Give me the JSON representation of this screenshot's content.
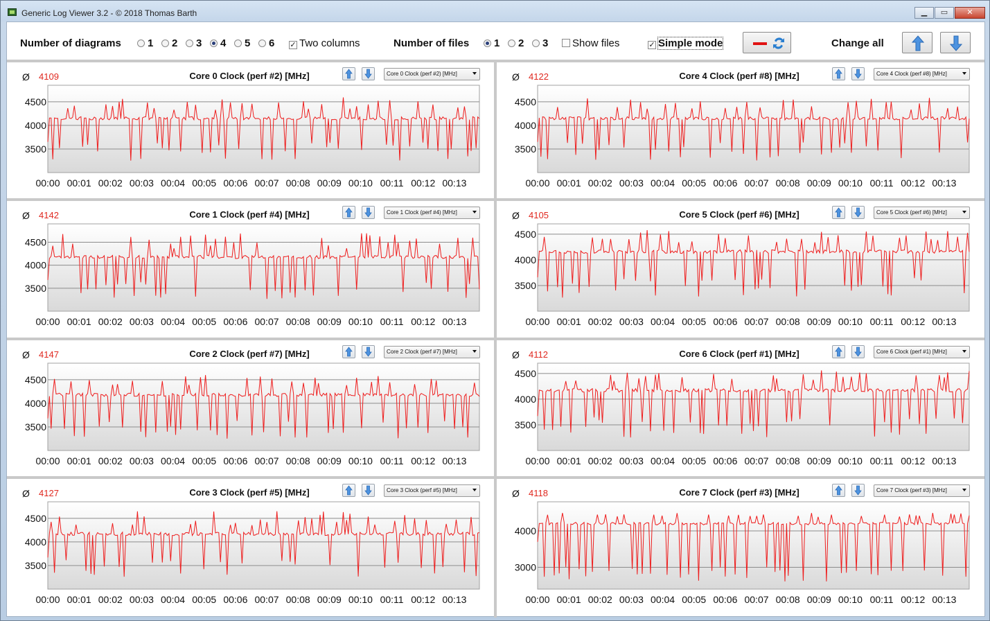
{
  "window": {
    "title": "Generic Log Viewer 3.2 - © 2018 Thomas Barth",
    "minimize": "▁",
    "maximize": "▭",
    "close": "✕"
  },
  "toolbar": {
    "num_diagrams_label": "Number of diagrams",
    "diagram_options": [
      "1",
      "2",
      "3",
      "4",
      "5",
      "6"
    ],
    "diagram_selected": "4",
    "two_columns_label": "Two columns",
    "two_columns_checked": true,
    "num_files_label": "Number of files",
    "file_options": [
      "1",
      "2",
      "3"
    ],
    "file_selected": "1",
    "show_files_label": "Show files",
    "show_files_checked": false,
    "simple_mode_label": "Simple mode",
    "simple_mode_checked": true,
    "change_all_label": "Change all"
  },
  "colors": {
    "series": "#ee1c1c",
    "avg": "#e0281f"
  },
  "panels": [
    {
      "title": "Core 0 Clock (perf #2) [MHz]",
      "avg": "4109",
      "combo": "Core 0 Clock (perf #2) [MHz]"
    },
    {
      "title": "Core 4 Clock (perf #8) [MHz]",
      "avg": "4122",
      "combo": "Core 4 Clock (perf #8) [MHz]"
    },
    {
      "title": "Core 1 Clock (perf #4) [MHz]",
      "avg": "4142",
      "combo": "Core 1 Clock (perf #4) [MHz]"
    },
    {
      "title": "Core 5 Clock (perf #6) [MHz]",
      "avg": "4105",
      "combo": "Core 5 Clock (perf #6) [MHz]"
    },
    {
      "title": "Core 2 Clock (perf #7) [MHz]",
      "avg": "4147",
      "combo": "Core 2 Clock (perf #7) [MHz]"
    },
    {
      "title": "Core 6 Clock (perf #1) [MHz]",
      "avg": "4112",
      "combo": "Core 6 Clock (perf #1) [MHz]"
    },
    {
      "title": "Core 3 Clock (perf #5) [MHz]",
      "avg": "4127",
      "combo": "Core 3 Clock (perf #5) [MHz]"
    },
    {
      "title": "Core 7 Clock (perf #3) [MHz]",
      "avg": "4118",
      "combo": "Core 7 Clock (perf #3) [MHz]"
    }
  ],
  "chart_data": [
    {
      "type": "line",
      "title": "Core 0 Clock (perf #2) [MHz]",
      "ylim": [
        3000,
        4850
      ],
      "yticks": [
        "3500",
        "4000",
        "4500"
      ],
      "xticks": [
        "00:00",
        "00:01",
        "00:02",
        "00:03",
        "00:04",
        "00:05",
        "00:06",
        "00:07",
        "00:08",
        "00:09",
        "00:10",
        "00:11",
        "00:12",
        "00:13"
      ],
      "xlim_minutes": [
        0,
        13.8
      ],
      "baseline": 4150,
      "seed": 11,
      "spike_up_max": 4600,
      "dip_min": 3250
    },
    {
      "type": "line",
      "title": "Core 4 Clock (perf #8) [MHz]",
      "ylim": [
        3000,
        4850
      ],
      "yticks": [
        "3500",
        "4000",
        "4500"
      ],
      "xticks": [
        "00:00",
        "00:01",
        "00:02",
        "00:03",
        "00:04",
        "00:05",
        "00:06",
        "00:07",
        "00:08",
        "00:09",
        "00:10",
        "00:11",
        "00:12",
        "00:13"
      ],
      "xlim_minutes": [
        0,
        13.8
      ],
      "baseline": 4150,
      "seed": 23,
      "spike_up_max": 4600,
      "dip_min": 3250
    },
    {
      "type": "line",
      "title": "Core 1 Clock (perf #4) [MHz]",
      "ylim": [
        3000,
        4900
      ],
      "yticks": [
        "3500",
        "4000",
        "4500"
      ],
      "xticks": [
        "00:00",
        "00:01",
        "00:02",
        "00:03",
        "00:04",
        "00:05",
        "00:06",
        "00:07",
        "00:08",
        "00:09",
        "00:10",
        "00:11",
        "00:12",
        "00:13"
      ],
      "xlim_minutes": [
        0,
        13.8
      ],
      "baseline": 4180,
      "seed": 37,
      "spike_up_max": 4720,
      "dip_min": 3250
    },
    {
      "type": "line",
      "title": "Core 5 Clock (perf #6) [MHz]",
      "ylim": [
        3000,
        4700
      ],
      "yticks": [
        "3500",
        "4000",
        "4500"
      ],
      "xticks": [
        "00:00",
        "00:01",
        "00:02",
        "00:03",
        "00:04",
        "00:05",
        "00:06",
        "00:07",
        "00:08",
        "00:09",
        "00:10",
        "00:11",
        "00:12",
        "00:13"
      ],
      "xlim_minutes": [
        0,
        13.8
      ],
      "baseline": 4160,
      "seed": 41,
      "spike_up_max": 4580,
      "dip_min": 3250
    },
    {
      "type": "line",
      "title": "Core 2 Clock (perf #7) [MHz]",
      "ylim": [
        3000,
        4850
      ],
      "yticks": [
        "3500",
        "4000",
        "4500"
      ],
      "xticks": [
        "00:00",
        "00:01",
        "00:02",
        "00:03",
        "00:04",
        "00:05",
        "00:06",
        "00:07",
        "00:08",
        "00:09",
        "00:10",
        "00:11",
        "00:12",
        "00:13"
      ],
      "xlim_minutes": [
        0,
        13.8
      ],
      "baseline": 4180,
      "seed": 53,
      "spike_up_max": 4600,
      "dip_min": 3250
    },
    {
      "type": "line",
      "title": "Core 6 Clock (perf #1) [MHz]",
      "ylim": [
        3000,
        4700
      ],
      "yticks": [
        "3500",
        "4000",
        "4500"
      ],
      "xticks": [
        "00:00",
        "00:01",
        "00:02",
        "00:03",
        "00:04",
        "00:05",
        "00:06",
        "00:07",
        "00:08",
        "00:09",
        "00:10",
        "00:11",
        "00:12",
        "00:13"
      ],
      "xlim_minutes": [
        0,
        13.8
      ],
      "baseline": 4170,
      "seed": 67,
      "spike_up_max": 4560,
      "dip_min": 3250
    },
    {
      "type": "line",
      "title": "Core 3 Clock (perf #5) [MHz]",
      "ylim": [
        3000,
        4850
      ],
      "yticks": [
        "3500",
        "4000",
        "4500"
      ],
      "xticks": [
        "00:00",
        "00:01",
        "00:02",
        "00:03",
        "00:04",
        "00:05",
        "00:06",
        "00:07",
        "00:08",
        "00:09",
        "00:10",
        "00:11",
        "00:12",
        "00:13"
      ],
      "xlim_minutes": [
        0,
        13.8
      ],
      "baseline": 4170,
      "seed": 79,
      "spike_up_max": 4650,
      "dip_min": 3250
    },
    {
      "type": "line",
      "title": "Core 7 Clock (perf #3) [MHz]",
      "ylim": [
        2400,
        4800
      ],
      "yticks": [
        "3000",
        "4000"
      ],
      "xticks": [
        "00:00",
        "00:01",
        "00:02",
        "00:03",
        "00:04",
        "00:05",
        "00:06",
        "00:07",
        "00:08",
        "00:09",
        "00:10",
        "00:11",
        "00:12",
        "00:13"
      ],
      "xlim_minutes": [
        0,
        13.8
      ],
      "baseline": 4200,
      "seed": 83,
      "spike_up_max": 4500,
      "dip_min": 2600
    }
  ]
}
